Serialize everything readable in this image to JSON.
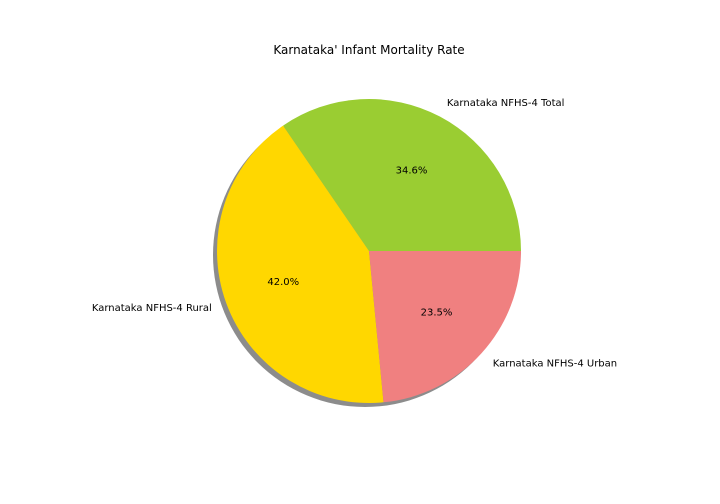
{
  "chart_data": {
    "type": "pie",
    "title": "Karnataka' Infant Mortality Rate",
    "shadow": true,
    "start_angle_deg": 0,
    "direction": "counterclockwise",
    "slices": [
      {
        "label": "Karnataka NFHS-4 Total",
        "pct_label": "34.6%",
        "value": 34.6,
        "color": "#9acd32"
      },
      {
        "label": "Karnataka NFHS-4 Rural",
        "pct_label": "42.0%",
        "value": 42.0,
        "color": "#ffd700"
      },
      {
        "label": "Karnataka NFHS-4 Urban",
        "pct_label": "23.5%",
        "value": 23.5,
        "color": "#f08080"
      }
    ]
  }
}
